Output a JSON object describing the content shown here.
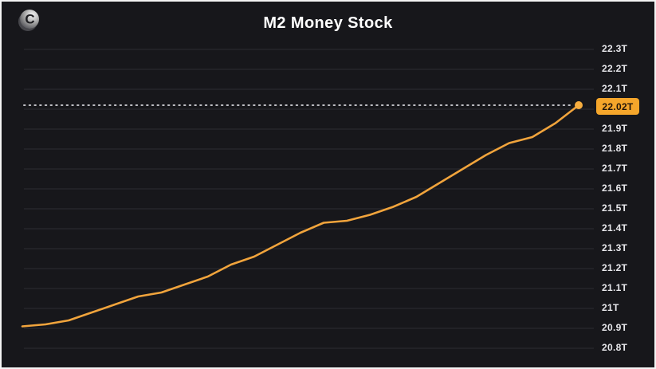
{
  "brand": {
    "glyph": "C",
    "icon_name": "coin-c-logo"
  },
  "header": {
    "title": "M2 Money Stock"
  },
  "colors": {
    "page_border": "#f4f4f4",
    "card_background": "#17171b",
    "grid_line": "#2e2e33",
    "axis_label": "#e8e8ec",
    "dimmed_axis_label": "#47474d",
    "title_text": "#ffffff",
    "series_line": "#f1a43c",
    "end_dot": "#f6ad3f",
    "dotted_reference": "#bfbfc4",
    "badge_background": "#f5a62b",
    "badge_text": "#23160a"
  },
  "chart_data": {
    "type": "line",
    "title": "M2 Money Stock",
    "unit": "trillion USD",
    "grid": "horizontal",
    "legend": "none",
    "x_axis": {
      "labels_visible": false
    },
    "y_axis": {
      "side": "right",
      "min": 20.8,
      "max": 22.3,
      "step": 0.1,
      "ticks": [
        "22.3T",
        "22.2T",
        "22.1T",
        "22T",
        "21.9T",
        "21.8T",
        "21.7T",
        "21.6T",
        "21.5T",
        "21.4T",
        "21.3T",
        "21.2T",
        "21.1T",
        "21T",
        "20.9T",
        "20.8T"
      ],
      "dimmed_tick": "22T"
    },
    "series": [
      {
        "name": "M2 Money Stock",
        "values": [
          20.91,
          20.92,
          20.94,
          20.98,
          21.02,
          21.06,
          21.08,
          21.12,
          21.16,
          21.22,
          21.26,
          21.32,
          21.38,
          21.43,
          21.44,
          21.47,
          21.51,
          21.56,
          21.63,
          21.7,
          21.77,
          21.83,
          21.86,
          21.93,
          22.02
        ]
      }
    ],
    "current_value": 22.02,
    "current_label": "22.02T",
    "annotations": {
      "dotted_line_at_current_value": true,
      "end_point_marker": true
    }
  }
}
